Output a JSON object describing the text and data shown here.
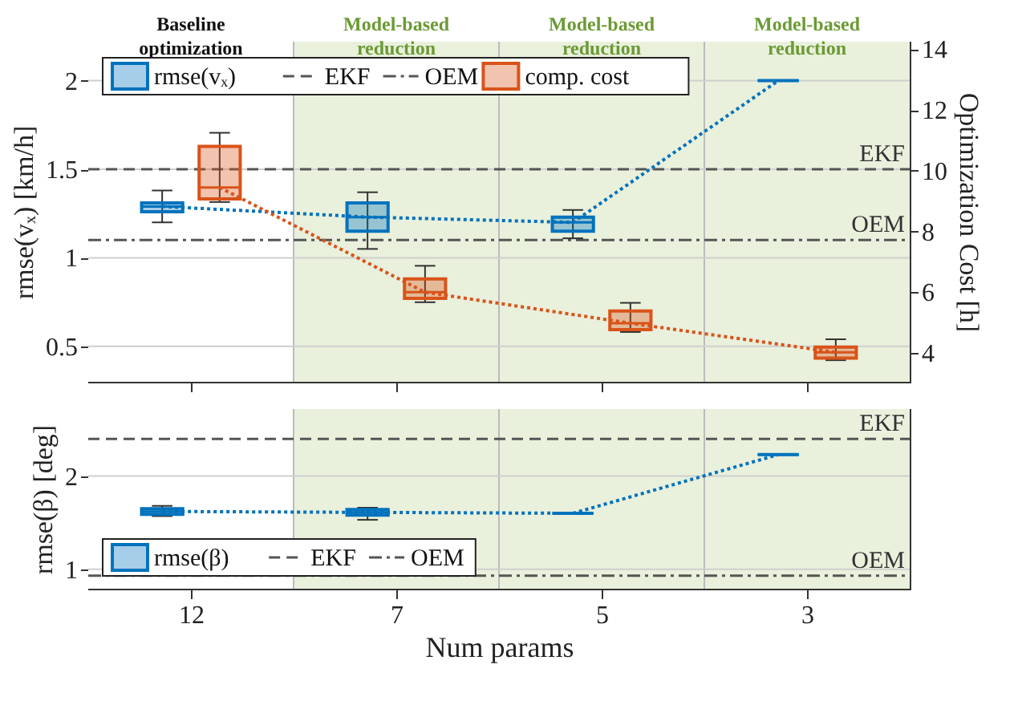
{
  "chart_data": [
    {
      "type": "box",
      "categories": [
        "12",
        "7",
        "5",
        "3"
      ],
      "ylabel": "rmse(vₓ) [km/h]",
      "y2label": "Optimization Cost [h]",
      "ylim": [
        0.3,
        2.22
      ],
      "yticks": [
        0.5,
        1,
        1.5,
        2
      ],
      "y2lim": [
        3.05,
        14.25
      ],
      "y2ticks": [
        4,
        6,
        8,
        10,
        12,
        14
      ],
      "grid": "y",
      "legend": "top left",
      "tick_labels": "y",
      "series": [
        {
          "name": "rmse(vₓ)",
          "color": "#0072bd",
          "boxes": [
            {
              "low": 1.2,
              "q1": 1.26,
              "median": 1.29,
              "q3": 1.31,
              "high": 1.38
            },
            {
              "low": 1.05,
              "q1": 1.15,
              "median": 1.23,
              "q3": 1.31,
              "high": 1.37
            },
            {
              "low": 1.11,
              "q1": 1.15,
              "median": 1.2,
              "q3": 1.23,
              "high": 1.27
            },
            {
              "low": 2.0,
              "q1": 2.0,
              "median": 2.0,
              "q3": 2.0,
              "high": 2.0
            }
          ]
        },
        {
          "type": "line",
          "color": "#0072bd",
          "values": [
            1.29,
            1.23,
            1.2,
            2.0
          ],
          "line_style": "dotted"
        },
        {
          "name": "comp. cost",
          "color": "#d95319",
          "axis": "y2",
          "boxes": [
            {
              "low": 8.97,
              "q1": 9.07,
              "median": 9.45,
              "q3": 10.8,
              "high": 11.25
            },
            {
              "low": 5.67,
              "q1": 5.8,
              "median": 6.0,
              "q3": 6.44,
              "high": 6.87
            },
            {
              "low": 4.69,
              "q1": 4.77,
              "median": 4.98,
              "q3": 5.38,
              "high": 5.65
            },
            {
              "low": 3.76,
              "q1": 3.83,
              "median": 4.02,
              "q3": 4.19,
              "high": 4.45
            }
          ]
        },
        {
          "type": "line",
          "color": "#d95319",
          "axis": "y2",
          "values": [
            9.45,
            6.0,
            4.98,
            4.02
          ],
          "line_style": "dotted"
        }
      ],
      "ref_lines": [
        {
          "axis": "y",
          "value": 1.5,
          "label": "EKF",
          "line_style": "dashed",
          "color": "#555555"
        },
        {
          "axis": "y",
          "value": 1.1,
          "label": "OEM",
          "line_style": "dashdot",
          "color": "#555555"
        }
      ],
      "bands": [
        {
          "axis": "x",
          "from": "12",
          "to": "12",
          "label": "Baseline optimization",
          "color": "#ffffff"
        },
        {
          "axis": "x",
          "from": "7",
          "to": "7",
          "label": "Model-based reduction",
          "color": "#e9f0dc"
        },
        {
          "axis": "x",
          "from": "5",
          "to": "5",
          "label": "Model-based reduction",
          "color": "#e9f0dc"
        },
        {
          "axis": "x",
          "from": "3",
          "to": "3",
          "label": "Model-based reduction",
          "color": "#e9f0dc"
        }
      ]
    },
    {
      "type": "box",
      "categories": [
        "12",
        "7",
        "5",
        "3"
      ],
      "xlabel": "Num params",
      "ylabel": "rmse(β) [deg]",
      "ylim": [
        0.79,
        2.72
      ],
      "yticks": [
        1,
        2
      ],
      "grid": "y",
      "legend": "bottom left",
      "series": [
        {
          "name": "rmse(β)",
          "color": "#0072bd",
          "boxes": [
            {
              "low": 1.57,
              "q1": 1.59,
              "median": 1.62,
              "q3": 1.65,
              "high": 1.68
            },
            {
              "low": 1.53,
              "q1": 1.58,
              "median": 1.61,
              "q3": 1.64,
              "high": 1.66
            },
            {
              "low": 1.6,
              "q1": 1.6,
              "median": 1.6,
              "q3": 1.6,
              "high": 1.6
            },
            {
              "low": 2.23,
              "q1": 2.23,
              "median": 2.23,
              "q3": 2.23,
              "high": 2.23
            }
          ]
        },
        {
          "type": "line",
          "color": "#0072bd",
          "values": [
            1.62,
            1.61,
            1.6,
            2.23
          ],
          "line_style": "dotted"
        }
      ],
      "ref_lines": [
        {
          "axis": "y",
          "value": 2.4,
          "label": "EKF",
          "line_style": "dashed",
          "color": "#555555"
        },
        {
          "axis": "y",
          "value": 0.93,
          "label": "OEM",
          "line_style": "dashdot",
          "color": "#555555"
        }
      ],
      "bands": [
        {
          "axis": "x",
          "from": "12",
          "to": "12",
          "color": "#ffffff"
        },
        {
          "axis": "x",
          "from": "7",
          "to": "7",
          "color": "#e9f0dc"
        },
        {
          "axis": "x",
          "from": "5",
          "to": "5",
          "color": "#e9f0dc"
        },
        {
          "axis": "x",
          "from": "3",
          "to": "3",
          "color": "#e9f0dc"
        }
      ]
    }
  ]
}
